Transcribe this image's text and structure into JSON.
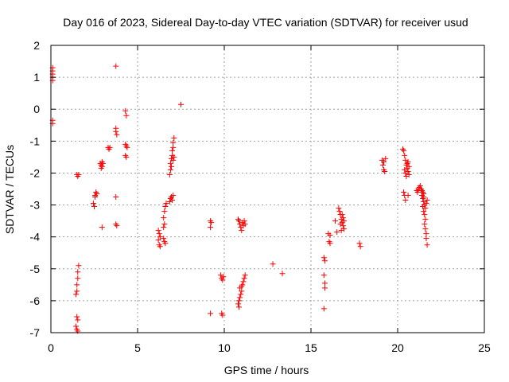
{
  "chart_data": {
    "type": "scatter",
    "title": "Day 016 of 2023, Sidereal Day-to-day VTEC variation (SDTVAR) for receiver usud",
    "xlabel": "GPS time / hours",
    "ylabel": "SDTVAR / TECUs",
    "xlim": [
      0,
      25
    ],
    "ylim": [
      -7,
      2
    ],
    "xticks": [
      0,
      5,
      10,
      15,
      20,
      25
    ],
    "yticks": [
      -7,
      -6,
      -5,
      -4,
      -3,
      -2,
      -1,
      0,
      1,
      2
    ],
    "xtick_labels": [
      "0",
      "5",
      "10",
      "15",
      "20",
      "25"
    ],
    "ytick_labels": [
      "-7",
      "-6",
      "-5",
      "-4",
      "-3",
      "-2",
      "-1",
      "0",
      "1",
      "2"
    ],
    "grid": true,
    "marker": "+",
    "color": "#ff0000",
    "series": [
      {
        "points": [
          [
            0.1,
            1.3
          ],
          [
            0.1,
            1.2
          ],
          [
            0.1,
            1.1
          ],
          [
            0.1,
            1.0
          ],
          [
            0.1,
            0.9
          ],
          [
            0.1,
            -0.35
          ],
          [
            0.1,
            -0.45
          ],
          [
            1.5,
            -2.05
          ],
          [
            1.55,
            -2.1
          ],
          [
            1.6,
            -2.05
          ],
          [
            1.45,
            -5.8
          ],
          [
            1.5,
            -5.7
          ],
          [
            1.5,
            -5.5
          ],
          [
            1.55,
            -5.3
          ],
          [
            1.55,
            -5.1
          ],
          [
            1.6,
            -4.9
          ],
          [
            1.45,
            -6.8
          ],
          [
            1.5,
            -6.9
          ],
          [
            1.55,
            -6.95
          ],
          [
            1.55,
            -6.6
          ],
          [
            1.5,
            -6.5
          ],
          [
            2.45,
            -2.95
          ],
          [
            2.5,
            -3.05
          ],
          [
            2.55,
            -2.7
          ],
          [
            2.6,
            -2.6
          ],
          [
            2.65,
            -2.65
          ],
          [
            2.55,
            -2.75
          ],
          [
            2.85,
            -1.7
          ],
          [
            2.9,
            -1.75
          ],
          [
            2.95,
            -1.8
          ],
          [
            2.9,
            -1.85
          ],
          [
            3.0,
            -1.7
          ],
          [
            2.95,
            -1.65
          ],
          [
            2.95,
            -3.7
          ],
          [
            3.3,
            -1.2
          ],
          [
            3.35,
            -1.25
          ],
          [
            3.4,
            -1.2
          ],
          [
            3.75,
            1.35
          ],
          [
            3.75,
            -0.6
          ],
          [
            3.75,
            -0.7
          ],
          [
            3.8,
            -0.8
          ],
          [
            3.75,
            -2.75
          ],
          [
            3.75,
            -3.6
          ],
          [
            3.8,
            -3.65
          ],
          [
            4.3,
            -0.05
          ],
          [
            4.35,
            -0.2
          ],
          [
            4.3,
            -1.1
          ],
          [
            4.35,
            -1.15
          ],
          [
            4.4,
            -1.2
          ],
          [
            4.3,
            -1.45
          ],
          [
            4.35,
            -1.5
          ],
          [
            6.2,
            -3.8
          ],
          [
            6.25,
            -3.9
          ],
          [
            6.3,
            -4.0
          ],
          [
            6.2,
            -4.1
          ],
          [
            6.25,
            -4.25
          ],
          [
            6.3,
            -4.3
          ],
          [
            6.5,
            -4.05
          ],
          [
            6.55,
            -4.15
          ],
          [
            6.6,
            -4.2
          ],
          [
            6.5,
            -3.7
          ],
          [
            6.55,
            -3.6
          ],
          [
            6.5,
            -3.4
          ],
          [
            6.55,
            -3.2
          ],
          [
            6.6,
            -3.05
          ],
          [
            6.65,
            -2.95
          ],
          [
            6.85,
            -2.9
          ],
          [
            6.9,
            -2.8
          ],
          [
            6.95,
            -2.75
          ],
          [
            7.0,
            -2.85
          ],
          [
            7.05,
            -2.7
          ],
          [
            6.85,
            -2.05
          ],
          [
            6.9,
            -1.9
          ],
          [
            6.9,
            -1.7
          ],
          [
            6.95,
            -1.55
          ],
          [
            7.0,
            -1.45
          ],
          [
            7.0,
            -1.3
          ],
          [
            7.05,
            -1.2
          ],
          [
            7.05,
            -1.05
          ],
          [
            7.1,
            -0.9
          ],
          [
            6.95,
            -1.8
          ],
          [
            7.05,
            -1.6
          ],
          [
            7.1,
            -1.5
          ],
          [
            7.5,
            0.15
          ],
          [
            9.2,
            -3.5
          ],
          [
            9.25,
            -3.55
          ],
          [
            9.2,
            -3.7
          ],
          [
            9.2,
            -6.4
          ],
          [
            9.8,
            -5.2
          ],
          [
            9.85,
            -5.3
          ],
          [
            9.9,
            -5.35
          ],
          [
            9.95,
            -5.25
          ],
          [
            9.85,
            -6.4
          ],
          [
            9.9,
            -6.45
          ],
          [
            10.8,
            -3.45
          ],
          [
            10.85,
            -3.5
          ],
          [
            10.9,
            -3.6
          ],
          [
            10.95,
            -3.7
          ],
          [
            11.0,
            -3.8
          ],
          [
            11.05,
            -3.55
          ],
          [
            11.1,
            -3.65
          ],
          [
            11.15,
            -3.5
          ],
          [
            11.2,
            -3.6
          ],
          [
            10.8,
            -6.1
          ],
          [
            10.85,
            -6.0
          ],
          [
            10.9,
            -5.9
          ],
          [
            10.95,
            -5.8
          ],
          [
            11.0,
            -5.7
          ],
          [
            11.0,
            -5.55
          ],
          [
            11.05,
            -5.5
          ],
          [
            11.1,
            -5.4
          ],
          [
            11.15,
            -5.3
          ],
          [
            11.2,
            -5.2
          ],
          [
            10.85,
            -6.2
          ],
          [
            10.9,
            -5.6
          ],
          [
            12.8,
            -4.85
          ],
          [
            13.35,
            -5.15
          ],
          [
            15.75,
            -4.65
          ],
          [
            15.8,
            -4.75
          ],
          [
            15.75,
            -5.2
          ],
          [
            15.8,
            -5.45
          ],
          [
            15.8,
            -5.6
          ],
          [
            15.75,
            -6.25
          ],
          [
            16.0,
            -3.9
          ],
          [
            16.1,
            -3.95
          ],
          [
            16.05,
            -4.15
          ],
          [
            16.1,
            -4.2
          ],
          [
            16.4,
            -3.5
          ],
          [
            16.5,
            -3.85
          ],
          [
            16.6,
            -3.1
          ],
          [
            16.65,
            -3.2
          ],
          [
            16.7,
            -3.3
          ],
          [
            16.75,
            -3.45
          ],
          [
            16.8,
            -3.55
          ],
          [
            16.85,
            -3.65
          ],
          [
            16.9,
            -3.75
          ],
          [
            16.8,
            -3.3
          ],
          [
            16.85,
            -3.4
          ],
          [
            16.9,
            -3.5
          ],
          [
            16.7,
            -3.6
          ],
          [
            16.75,
            -3.8
          ],
          [
            17.8,
            -4.2
          ],
          [
            17.85,
            -4.3
          ],
          [
            19.1,
            -1.6
          ],
          [
            19.15,
            -1.75
          ],
          [
            19.2,
            -1.9
          ],
          [
            19.25,
            -1.95
          ],
          [
            19.3,
            -1.55
          ],
          [
            19.2,
            -1.65
          ],
          [
            20.3,
            -1.25
          ],
          [
            20.35,
            -1.3
          ],
          [
            20.4,
            -1.45
          ],
          [
            20.45,
            -1.6
          ],
          [
            20.5,
            -1.75
          ],
          [
            20.55,
            -1.85
          ],
          [
            20.6,
            -1.95
          ],
          [
            20.65,
            -2.05
          ],
          [
            20.4,
            -1.9
          ],
          [
            20.45,
            -2.0
          ],
          [
            20.5,
            -2.1
          ],
          [
            20.55,
            -1.7
          ],
          [
            20.6,
            -1.65
          ],
          [
            20.65,
            -1.8
          ],
          [
            20.35,
            -2.6
          ],
          [
            20.4,
            -2.7
          ],
          [
            20.45,
            -2.85
          ],
          [
            20.6,
            -2.7
          ],
          [
            21.1,
            -2.55
          ],
          [
            21.15,
            -2.6
          ],
          [
            21.2,
            -2.5
          ],
          [
            21.25,
            -2.45
          ],
          [
            21.3,
            -2.4
          ],
          [
            21.35,
            -2.5
          ],
          [
            21.4,
            -2.55
          ],
          [
            21.45,
            -2.6
          ],
          [
            21.5,
            -2.65
          ],
          [
            21.4,
            -2.7
          ],
          [
            21.45,
            -2.8
          ],
          [
            21.5,
            -2.9
          ],
          [
            21.55,
            -3.0
          ],
          [
            21.6,
            -3.1
          ],
          [
            21.5,
            -3.2
          ],
          [
            21.55,
            -3.3
          ],
          [
            21.6,
            -3.45
          ],
          [
            21.55,
            -3.6
          ],
          [
            21.6,
            -3.75
          ],
          [
            21.65,
            -3.9
          ],
          [
            21.65,
            -4.05
          ],
          [
            21.7,
            -4.25
          ],
          [
            21.45,
            -3.05
          ],
          [
            21.5,
            -2.75
          ],
          [
            21.65,
            -2.95
          ],
          [
            21.7,
            -2.85
          ]
        ]
      }
    ]
  }
}
